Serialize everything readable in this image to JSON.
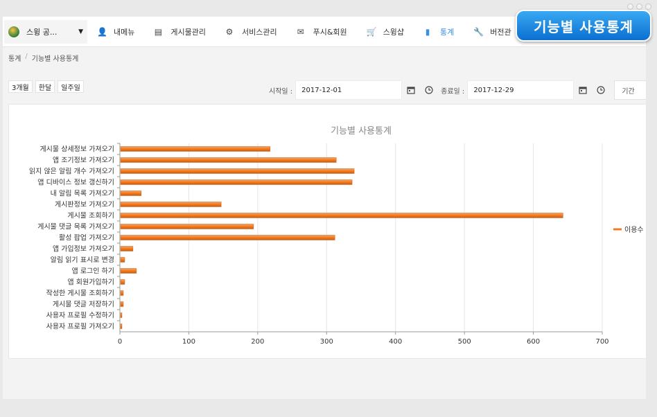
{
  "app": {
    "name": "스윙 공..."
  },
  "nav": [
    {
      "icon": "user-icon",
      "label": "내메뉴",
      "active": false
    },
    {
      "icon": "list-icon",
      "label": "게시물관리",
      "active": false
    },
    {
      "icon": "gear-icon",
      "label": "서비스관리",
      "active": false
    },
    {
      "icon": "envelope-icon",
      "label": "푸시&회원",
      "active": false
    },
    {
      "icon": "cart-icon",
      "label": "스윙샵",
      "active": false
    },
    {
      "icon": "bar-chart-icon",
      "label": "통계",
      "active": true
    },
    {
      "icon": "wrench-icon",
      "label": "버전관",
      "active": false
    }
  ],
  "breadcrumb": {
    "parent": "통계",
    "current": "기능별 사용통계"
  },
  "range_buttons": [
    "3개월",
    "한달",
    "일주일"
  ],
  "filters": {
    "start_label": "시작일 :",
    "start_value": "2017-12-01",
    "end_label": "종료일 :",
    "end_value": "2017-12-29",
    "period_label": "기간"
  },
  "badge": "기능별 사용통계",
  "chart_data": {
    "type": "bar",
    "orientation": "horizontal",
    "title": "기능별 사용통계",
    "categories": [
      "게시물 상세정보 가져오기",
      "앱 조기정보 가져오기",
      "읽지 않은 알림 개수 가져오기",
      "앱 디바이스 정보 갱신하기",
      "내 알림 목록 가져오기",
      "게시판정보 가져오기",
      "게시물 조회하기",
      "게시물 댓글 목록 가져오기",
      "활성 팝업 가져오기",
      "앱 가입정보 가져오기",
      "알림 읽기 표시로 변경",
      "앱 로그인 하기",
      "앱 회원가입하기",
      "작성한 게시물 조회하기",
      "게시물 댓글 저장하기",
      "사용자 프로필 수정하기",
      "사용자 프로필 가져오기"
    ],
    "series": [
      {
        "name": "이용수",
        "color": "#f07b22",
        "values": [
          217,
          313,
          339,
          336,
          30,
          146,
          642,
          193,
          311,
          18,
          6,
          23,
          6,
          4,
          4,
          2,
          2
        ]
      }
    ],
    "xlim": [
      0,
      700
    ],
    "xticks": [
      0,
      100,
      200,
      300,
      400,
      500,
      600,
      700
    ],
    "grid": true,
    "legend_position": "right"
  }
}
